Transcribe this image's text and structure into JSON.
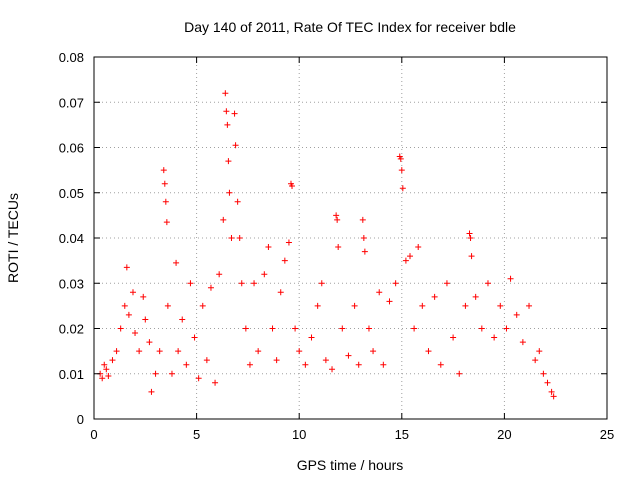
{
  "chart_data": {
    "type": "scatter",
    "title": "Day 140 of 2011, Rate Of TEC Index for receiver bdle",
    "xlabel": "GPS time / hours",
    "ylabel": "ROTI / TECUs",
    "xlim": [
      0,
      25
    ],
    "ylim": [
      0,
      0.08
    ],
    "x_ticks": [
      0,
      5,
      10,
      15,
      20,
      25
    ],
    "y_ticks": [
      0,
      0.01,
      0.02,
      0.03,
      0.04,
      0.05,
      0.06,
      0.07,
      0.08
    ],
    "x_tick_labels": [
      "0",
      "5",
      "10",
      "15",
      "20",
      "25"
    ],
    "y_tick_labels": [
      "0",
      "0.01",
      "0.02",
      "0.03",
      "0.04",
      "0.05",
      "0.06",
      "0.07",
      "0.08"
    ],
    "grid": true,
    "marker": "+",
    "series_color": "#ff0000",
    "points": [
      [
        0.3,
        0.01
      ],
      [
        0.4,
        0.009
      ],
      [
        0.5,
        0.012
      ],
      [
        0.6,
        0.011
      ],
      [
        0.7,
        0.0095
      ],
      [
        0.9,
        0.013
      ],
      [
        1.1,
        0.015
      ],
      [
        1.3,
        0.02
      ],
      [
        1.5,
        0.025
      ],
      [
        1.6,
        0.0335
      ],
      [
        1.7,
        0.023
      ],
      [
        1.9,
        0.028
      ],
      [
        2.0,
        0.019
      ],
      [
        2.2,
        0.015
      ],
      [
        2.4,
        0.027
      ],
      [
        2.5,
        0.022
      ],
      [
        2.7,
        0.017
      ],
      [
        2.8,
        0.006
      ],
      [
        3.0,
        0.01
      ],
      [
        3.2,
        0.015
      ],
      [
        3.4,
        0.055
      ],
      [
        3.45,
        0.052
      ],
      [
        3.5,
        0.048
      ],
      [
        3.55,
        0.0435
      ],
      [
        3.6,
        0.025
      ],
      [
        3.8,
        0.01
      ],
      [
        4.0,
        0.0345
      ],
      [
        4.1,
        0.015
      ],
      [
        4.3,
        0.022
      ],
      [
        4.5,
        0.012
      ],
      [
        4.7,
        0.03
      ],
      [
        4.9,
        0.018
      ],
      [
        5.1,
        0.009
      ],
      [
        5.3,
        0.025
      ],
      [
        5.5,
        0.013
      ],
      [
        5.7,
        0.029
      ],
      [
        5.9,
        0.008
      ],
      [
        6.1,
        0.032
      ],
      [
        6.3,
        0.044
      ],
      [
        6.4,
        0.072
      ],
      [
        6.45,
        0.068
      ],
      [
        6.5,
        0.065
      ],
      [
        6.55,
        0.057
      ],
      [
        6.6,
        0.05
      ],
      [
        6.7,
        0.04
      ],
      [
        6.85,
        0.0675
      ],
      [
        6.9,
        0.0605
      ],
      [
        7.0,
        0.048
      ],
      [
        7.1,
        0.04
      ],
      [
        7.2,
        0.03
      ],
      [
        7.4,
        0.02
      ],
      [
        7.6,
        0.012
      ],
      [
        7.8,
        0.03
      ],
      [
        8.0,
        0.015
      ],
      [
        8.3,
        0.032
      ],
      [
        8.5,
        0.038
      ],
      [
        8.7,
        0.02
      ],
      [
        8.9,
        0.013
      ],
      [
        9.1,
        0.028
      ],
      [
        9.3,
        0.035
      ],
      [
        9.5,
        0.039
      ],
      [
        9.6,
        0.052
      ],
      [
        9.65,
        0.0515
      ],
      [
        9.8,
        0.02
      ],
      [
        10.0,
        0.015
      ],
      [
        10.3,
        0.012
      ],
      [
        10.6,
        0.018
      ],
      [
        10.9,
        0.025
      ],
      [
        11.1,
        0.03
      ],
      [
        11.3,
        0.013
      ],
      [
        11.6,
        0.011
      ],
      [
        11.8,
        0.045
      ],
      [
        11.85,
        0.044
      ],
      [
        11.9,
        0.038
      ],
      [
        12.1,
        0.02
      ],
      [
        12.4,
        0.014
      ],
      [
        12.7,
        0.025
      ],
      [
        12.9,
        0.012
      ],
      [
        13.1,
        0.044
      ],
      [
        13.15,
        0.04
      ],
      [
        13.2,
        0.037
      ],
      [
        13.4,
        0.02
      ],
      [
        13.6,
        0.015
      ],
      [
        13.9,
        0.028
      ],
      [
        14.1,
        0.012
      ],
      [
        14.4,
        0.026
      ],
      [
        14.7,
        0.03
      ],
      [
        14.9,
        0.058
      ],
      [
        14.95,
        0.0575
      ],
      [
        15.0,
        0.055
      ],
      [
        15.05,
        0.051
      ],
      [
        15.2,
        0.035
      ],
      [
        15.4,
        0.036
      ],
      [
        15.6,
        0.02
      ],
      [
        15.8,
        0.038
      ],
      [
        16.0,
        0.025
      ],
      [
        16.3,
        0.015
      ],
      [
        16.6,
        0.027
      ],
      [
        16.9,
        0.012
      ],
      [
        17.2,
        0.03
      ],
      [
        17.5,
        0.018
      ],
      [
        17.8,
        0.01
      ],
      [
        18.1,
        0.025
      ],
      [
        18.3,
        0.041
      ],
      [
        18.35,
        0.04
      ],
      [
        18.4,
        0.036
      ],
      [
        18.6,
        0.027
      ],
      [
        18.9,
        0.02
      ],
      [
        19.2,
        0.03
      ],
      [
        19.5,
        0.018
      ],
      [
        19.8,
        0.025
      ],
      [
        20.1,
        0.02
      ],
      [
        20.3,
        0.031
      ],
      [
        20.6,
        0.023
      ],
      [
        20.9,
        0.017
      ],
      [
        21.2,
        0.025
      ],
      [
        21.5,
        0.013
      ],
      [
        21.7,
        0.015
      ],
      [
        21.9,
        0.01
      ],
      [
        22.1,
        0.008
      ],
      [
        22.3,
        0.006
      ],
      [
        22.4,
        0.005
      ]
    ]
  }
}
